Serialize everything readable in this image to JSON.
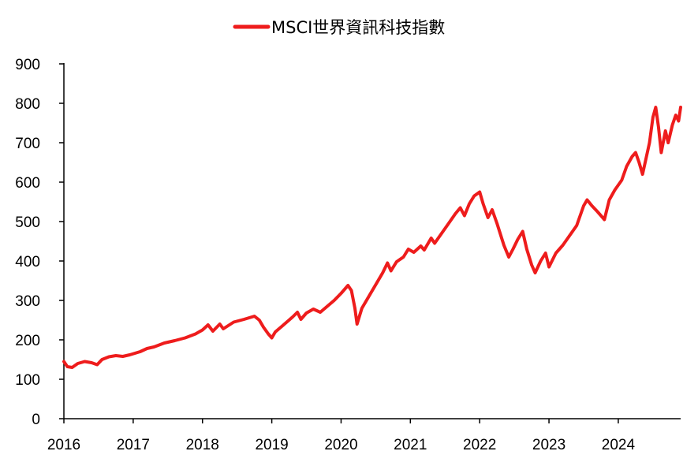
{
  "chart_data": {
    "type": "line",
    "title": "",
    "xlabel": "",
    "ylabel": "",
    "legend": {
      "position": "top-center"
    },
    "grid": false,
    "x_range": [
      2016.0,
      2024.9
    ],
    "ylim": [
      0,
      900
    ],
    "y_ticks": [
      0,
      100,
      200,
      300,
      400,
      500,
      600,
      700,
      800,
      900
    ],
    "x_ticks": [
      "2016",
      "2017",
      "2018",
      "2019",
      "2020",
      "2021",
      "2022",
      "2023",
      "2024"
    ],
    "series": [
      {
        "name": "MSCI世界資訊科技指數",
        "color": "#ee1c1c",
        "points": [
          [
            2016.0,
            145
          ],
          [
            2016.05,
            132
          ],
          [
            2016.12,
            130
          ],
          [
            2016.2,
            140
          ],
          [
            2016.3,
            145
          ],
          [
            2016.4,
            142
          ],
          [
            2016.48,
            137
          ],
          [
            2016.55,
            150
          ],
          [
            2016.65,
            157
          ],
          [
            2016.75,
            160
          ],
          [
            2016.85,
            158
          ],
          [
            2016.95,
            162
          ],
          [
            2017.1,
            170
          ],
          [
            2017.2,
            178
          ],
          [
            2017.3,
            182
          ],
          [
            2017.45,
            192
          ],
          [
            2017.6,
            198
          ],
          [
            2017.75,
            205
          ],
          [
            2017.9,
            215
          ],
          [
            2018.0,
            225
          ],
          [
            2018.08,
            238
          ],
          [
            2018.15,
            222
          ],
          [
            2018.25,
            240
          ],
          [
            2018.3,
            228
          ],
          [
            2018.45,
            245
          ],
          [
            2018.6,
            252
          ],
          [
            2018.75,
            260
          ],
          [
            2018.82,
            250
          ],
          [
            2018.88,
            232
          ],
          [
            2018.95,
            215
          ],
          [
            2019.0,
            205
          ],
          [
            2019.05,
            220
          ],
          [
            2019.15,
            235
          ],
          [
            2019.3,
            258
          ],
          [
            2019.37,
            270
          ],
          [
            2019.42,
            252
          ],
          [
            2019.5,
            268
          ],
          [
            2019.6,
            278
          ],
          [
            2019.7,
            270
          ],
          [
            2019.8,
            285
          ],
          [
            2019.9,
            300
          ],
          [
            2020.0,
            318
          ],
          [
            2020.1,
            338
          ],
          [
            2020.15,
            325
          ],
          [
            2020.2,
            280
          ],
          [
            2020.23,
            240
          ],
          [
            2020.3,
            280
          ],
          [
            2020.4,
            310
          ],
          [
            2020.5,
            340
          ],
          [
            2020.6,
            370
          ],
          [
            2020.67,
            395
          ],
          [
            2020.72,
            375
          ],
          [
            2020.8,
            398
          ],
          [
            2020.9,
            410
          ],
          [
            2020.97,
            430
          ],
          [
            2021.05,
            422
          ],
          [
            2021.15,
            438
          ],
          [
            2021.2,
            428
          ],
          [
            2021.3,
            458
          ],
          [
            2021.35,
            445
          ],
          [
            2021.45,
            470
          ],
          [
            2021.55,
            495
          ],
          [
            2021.65,
            520
          ],
          [
            2021.72,
            535
          ],
          [
            2021.78,
            515
          ],
          [
            2021.85,
            545
          ],
          [
            2021.92,
            565
          ],
          [
            2022.0,
            575
          ],
          [
            2022.05,
            545
          ],
          [
            2022.12,
            510
          ],
          [
            2022.18,
            530
          ],
          [
            2022.25,
            495
          ],
          [
            2022.35,
            440
          ],
          [
            2022.42,
            410
          ],
          [
            2022.48,
            430
          ],
          [
            2022.55,
            455
          ],
          [
            2022.62,
            475
          ],
          [
            2022.68,
            430
          ],
          [
            2022.75,
            390
          ],
          [
            2022.8,
            370
          ],
          [
            2022.88,
            400
          ],
          [
            2022.95,
            420
          ],
          [
            2023.0,
            385
          ],
          [
            2023.1,
            420
          ],
          [
            2023.2,
            440
          ],
          [
            2023.3,
            465
          ],
          [
            2023.4,
            490
          ],
          [
            2023.5,
            540
          ],
          [
            2023.55,
            555
          ],
          [
            2023.62,
            540
          ],
          [
            2023.7,
            525
          ],
          [
            2023.8,
            505
          ],
          [
            2023.87,
            555
          ],
          [
            2023.95,
            580
          ],
          [
            2024.05,
            605
          ],
          [
            2024.12,
            640
          ],
          [
            2024.2,
            665
          ],
          [
            2024.25,
            675
          ],
          [
            2024.3,
            650
          ],
          [
            2024.35,
            620
          ],
          [
            2024.45,
            700
          ],
          [
            2024.5,
            765
          ],
          [
            2024.54,
            790
          ],
          [
            2024.58,
            740
          ],
          [
            2024.62,
            675
          ],
          [
            2024.68,
            730
          ],
          [
            2024.72,
            700
          ],
          [
            2024.78,
            745
          ],
          [
            2024.83,
            770
          ],
          [
            2024.87,
            755
          ],
          [
            2024.9,
            790
          ]
        ]
      }
    ]
  }
}
